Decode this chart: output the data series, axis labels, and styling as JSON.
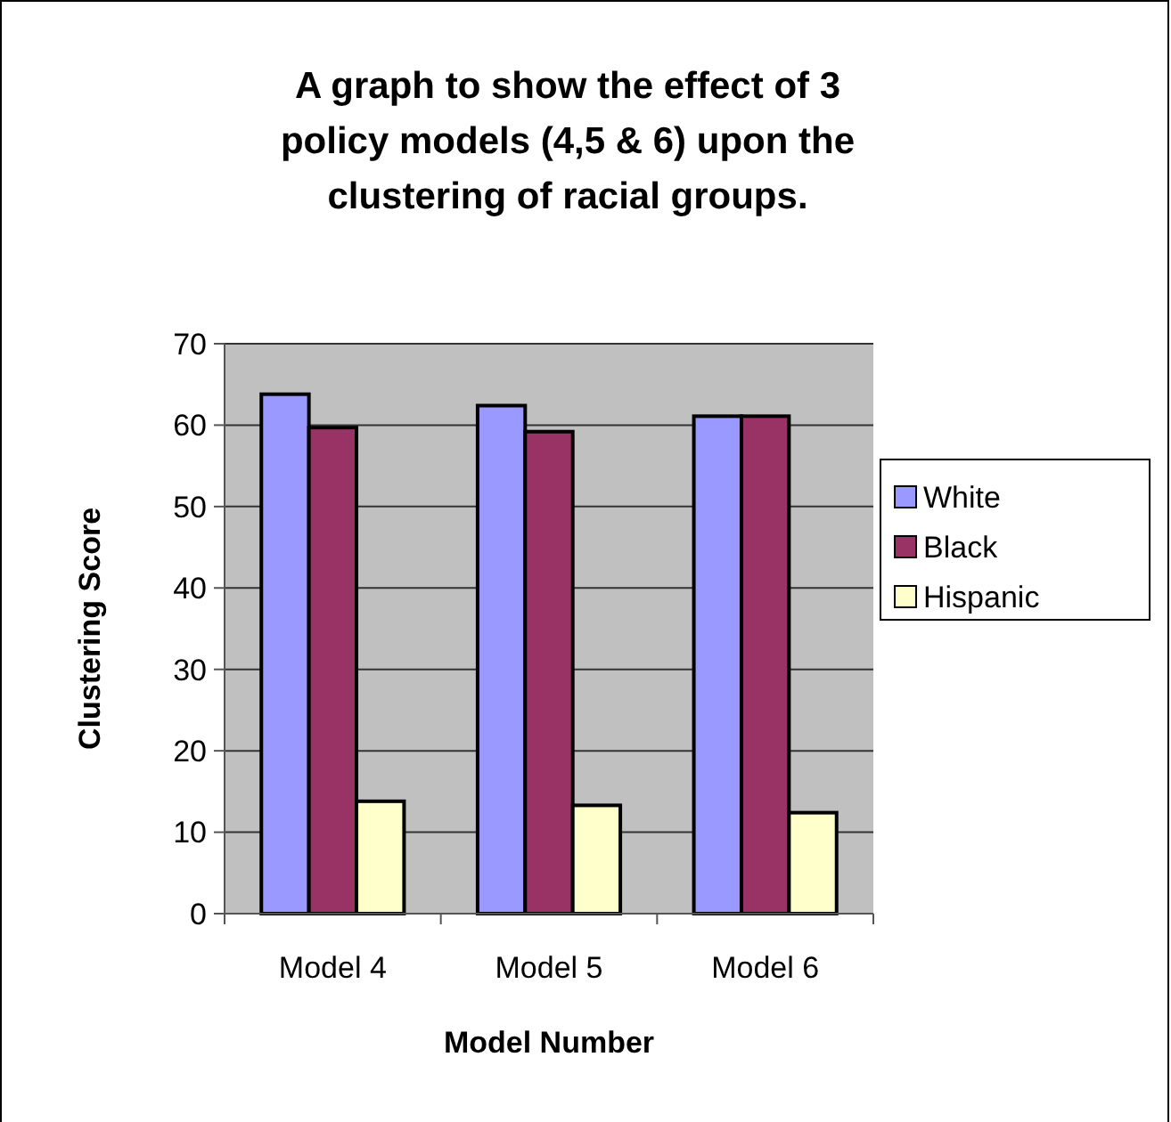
{
  "chart_data": {
    "type": "bar",
    "title": "A graph to show the effect of 3 policy models (4,5 & 6) upon the clustering of racial groups.",
    "xlabel": "Model Number",
    "ylabel": "Clustering Score",
    "categories": [
      "Model 4",
      "Model 5",
      "Model 6"
    ],
    "series": [
      {
        "name": "White",
        "color": "#9999ff",
        "values": [
          63.8,
          62.4,
          61.1
        ]
      },
      {
        "name": "Black",
        "color": "#993366",
        "values": [
          59.7,
          59.2,
          61.1
        ]
      },
      {
        "name": "Hispanic",
        "color": "#ffffcc",
        "values": [
          13.8,
          13.3,
          12.4
        ]
      }
    ],
    "ylim": [
      0,
      70
    ],
    "yticks": [
      0,
      10,
      20,
      30,
      40,
      50,
      60,
      70
    ],
    "grid": "y",
    "legend": "right"
  }
}
